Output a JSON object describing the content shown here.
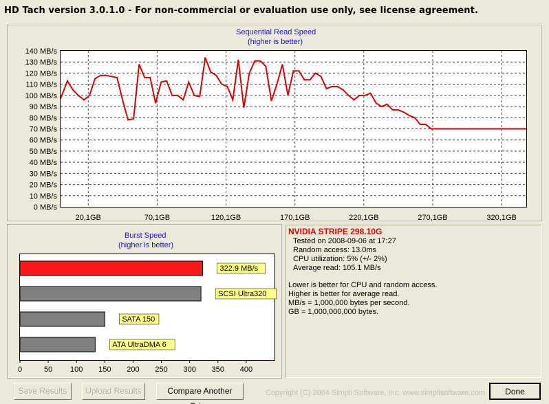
{
  "window": {
    "title": "HD Tach version 3.0.1.0  - For non-commercial or evaluation use only, see license agreement."
  },
  "colors": {
    "line": "#d40000",
    "bar_primary": "#ff1818",
    "bar_other": "#808080",
    "label_bg": "#ffff88",
    "title_text": "#1515c8",
    "drive_name": "#e00000"
  },
  "chart_data": [
    {
      "type": "line",
      "title": "Sequential Read Speed",
      "subtitle": "(higher is better)",
      "xlabel": "",
      "ylabel": "",
      "y_unit": "MB/s",
      "ylim": [
        0,
        140
      ],
      "xlim": [
        0,
        338
      ],
      "y_ticks": [
        "0 MB/s",
        "10 MB/s",
        "20 MB/s",
        "30 MB/s",
        "40 MB/s",
        "50 MB/s",
        "60 MB/s",
        "70 MB/s",
        "80 MB/s",
        "90 MB/s",
        "100 MB/s",
        "110 MB/s",
        "120 MB/s",
        "130 MB/s",
        "140 MB/s"
      ],
      "x_ticks": [
        {
          "value": 20.1,
          "label": "20,1GB"
        },
        {
          "value": 70.1,
          "label": "70,1GB"
        },
        {
          "value": 120.1,
          "label": "120,1GB"
        },
        {
          "value": 170.1,
          "label": "170,1GB"
        },
        {
          "value": 220.1,
          "label": "220,1GB"
        },
        {
          "value": 270.1,
          "label": "270,1GB"
        },
        {
          "value": 320.1,
          "label": "320,1GB"
        }
      ],
      "grid": true,
      "series": [
        {
          "x": [
            0,
            5,
            9,
            13,
            17,
            21,
            25,
            29,
            33,
            37,
            41,
            45,
            49,
            53,
            57,
            61,
            65,
            69,
            73,
            77,
            81,
            85,
            89,
            93,
            97,
            101,
            105,
            109,
            113,
            117,
            121,
            125,
            129,
            133,
            137,
            141,
            145,
            149,
            153,
            157,
            161,
            165,
            169,
            173,
            177,
            181,
            185,
            189,
            193,
            197,
            201,
            205,
            209,
            213,
            217,
            221,
            225,
            229,
            233,
            237,
            241,
            245,
            249,
            253,
            257,
            261,
            265,
            269,
            273,
            277,
            281,
            285,
            289,
            293,
            297,
            301,
            305,
            309,
            313,
            317,
            321,
            325,
            329,
            333,
            338
          ],
          "y": [
            97,
            113,
            105,
            100,
            96,
            100,
            115,
            118,
            118,
            117,
            116,
            96,
            78,
            79,
            128,
            116,
            116,
            93,
            112,
            113,
            100,
            100,
            96,
            112,
            100,
            99,
            134,
            121,
            118,
            110,
            108,
            96,
            132,
            89,
            120,
            131,
            131,
            126,
            95,
            110,
            128,
            100,
            122,
            122,
            114,
            114,
            120,
            117,
            106,
            108,
            108,
            105,
            100,
            96,
            100,
            100,
            102,
            93,
            90,
            92,
            87,
            87,
            85,
            82,
            80,
            74,
            74,
            70,
            70,
            70,
            70,
            70,
            70,
            70,
            70,
            70,
            70,
            70,
            70,
            70,
            70,
            70,
            70,
            70,
            70
          ]
        }
      ]
    },
    {
      "type": "bar",
      "orientation": "horizontal",
      "title": "Burst Speed",
      "subtitle": "(higher is better)",
      "xlim": [
        0,
        450
      ],
      "x_ticks": [
        "0",
        "50",
        "100",
        "150",
        "200",
        "250",
        "300",
        "350",
        "400"
      ],
      "categories": [
        "322.9 MB/s",
        "SCSI Ultra320",
        "SATA 150",
        "ATA UltraDMA 6"
      ],
      "values": [
        322.9,
        320,
        150,
        133
      ],
      "highlight_index": 0
    }
  ],
  "info": {
    "drive_name": "NVIDIA STRIPE 298.10G",
    "tested": "Tested on 2008-09-06 at 17:27",
    "random_access": "Random access: 13.0ms",
    "cpu": "CPU utilization: 5% (+/- 2%)",
    "average_read": "Average read: 105.1 MB/s",
    "note1": "Lower is better for CPU and random access.",
    "note2": "Higher is better for average read.",
    "note3": "MB/s = 1,000,000 bytes per second.",
    "note4": "GB = 1,000,000,000 bytes."
  },
  "buttons": {
    "save": "Save Results",
    "upload": "Upload Results",
    "compare": "Compare Another Drive",
    "done": "Done"
  },
  "footer": {
    "copyright": "Copyright (C) 2004 Simpli Software, Inc. www.simplisoftware.com"
  }
}
